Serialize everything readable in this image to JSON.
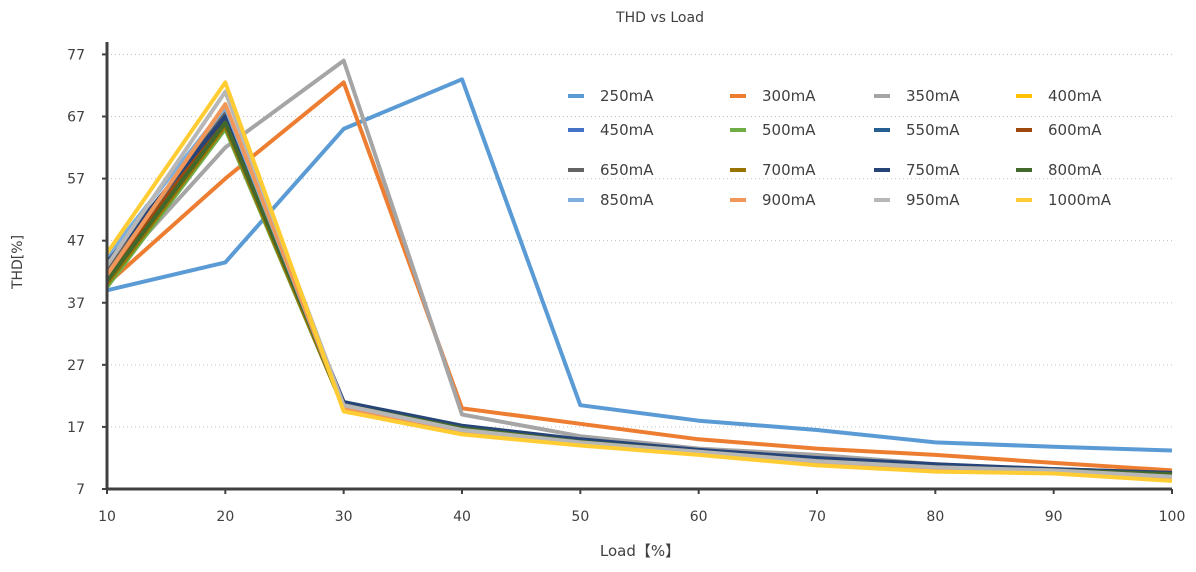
{
  "chart_data": {
    "type": "line",
    "title": "THD vs Load",
    "xlabel": "Load【%】",
    "ylabel": "THD[%]",
    "x": [
      10,
      20,
      30,
      40,
      50,
      60,
      70,
      80,
      90,
      100
    ],
    "xlim": [
      10,
      100
    ],
    "ylim": [
      7,
      79
    ],
    "yticks": [
      7,
      17,
      27,
      37,
      47,
      57,
      67,
      77
    ],
    "xticks": [
      10,
      20,
      30,
      40,
      50,
      60,
      70,
      80,
      90,
      100
    ],
    "grid": "horizontal dotted",
    "legend": "top-right",
    "series": [
      {
        "name": "250mA",
        "color": "#5b9bd5",
        "values": [
          39,
          43.5,
          65,
          73,
          20.5,
          18,
          16.5,
          14.5,
          13.8,
          13.2
        ]
      },
      {
        "name": "300mA",
        "color": "#ed7d31",
        "values": [
          40,
          57,
          72.5,
          20,
          17.5,
          15,
          13.5,
          12.5,
          11.2,
          10
        ]
      },
      {
        "name": "350mA",
        "color": "#a5a5a5",
        "values": [
          41,
          62,
          76,
          19,
          15.5,
          13.5,
          12.5,
          11,
          10,
          9.5
        ]
      },
      {
        "name": "400mA",
        "color": "#ffc000",
        "values": [
          43,
          67,
          20,
          16.5,
          14.5,
          13,
          11.5,
          10.2,
          9.8,
          9
        ]
      },
      {
        "name": "450mA",
        "color": "#4472c4",
        "values": [
          42,
          67,
          20.5,
          16.5,
          14.5,
          13,
          11.5,
          10.5,
          10,
          9.5
        ]
      },
      {
        "name": "500mA",
        "color": "#70ad47",
        "values": [
          39.5,
          65,
          20,
          16.5,
          14.5,
          13,
          11.5,
          10.5,
          10,
          9.3
        ]
      },
      {
        "name": "550mA",
        "color": "#255e91",
        "values": [
          40.5,
          66,
          20.5,
          17,
          14.8,
          13.2,
          11.8,
          10.8,
          10.1,
          9.5
        ]
      },
      {
        "name": "600mA",
        "color": "#9e480e",
        "values": [
          41,
          67,
          20.5,
          16.8,
          14.5,
          13,
          11.5,
          10.5,
          10,
          9.4
        ]
      },
      {
        "name": "650mA",
        "color": "#636363",
        "values": [
          42.5,
          67.5,
          21,
          17,
          14.8,
          13.2,
          11.8,
          10.8,
          10.2,
          9.6
        ]
      },
      {
        "name": "700mA",
        "color": "#997300",
        "values": [
          40,
          65.5,
          20,
          16.5,
          14.5,
          12.8,
          11.3,
          10.3,
          9.8,
          9.2
        ]
      },
      {
        "name": "750mA",
        "color": "#264478",
        "values": [
          43.5,
          67,
          21,
          17.2,
          15,
          13.3,
          12,
          11,
          10.2,
          9.6
        ]
      },
      {
        "name": "800mA",
        "color": "#43682b",
        "values": [
          40.5,
          66,
          20.5,
          16.8,
          14.6,
          13,
          11.5,
          10.5,
          10,
          9.4
        ]
      },
      {
        "name": "850mA",
        "color": "#7cafdd",
        "values": [
          44.5,
          68.5,
          20,
          16.2,
          14.2,
          12.8,
          11.2,
          10.2,
          9.8,
          9
        ]
      },
      {
        "name": "900mA",
        "color": "#f1975a",
        "values": [
          41.5,
          69,
          20,
          16.2,
          14.2,
          12.8,
          11.2,
          10.2,
          9.8,
          8.8
        ]
      },
      {
        "name": "950mA",
        "color": "#b7b7b7",
        "values": [
          43,
          71,
          20.5,
          16.5,
          14.5,
          13,
          11.5,
          10.5,
          10,
          9
        ]
      },
      {
        "name": "1000mA",
        "color": "#ffcd33",
        "values": [
          45,
          72.5,
          19.5,
          15.8,
          14,
          12.5,
          10.8,
          9.8,
          9.5,
          8.3
        ]
      }
    ]
  }
}
